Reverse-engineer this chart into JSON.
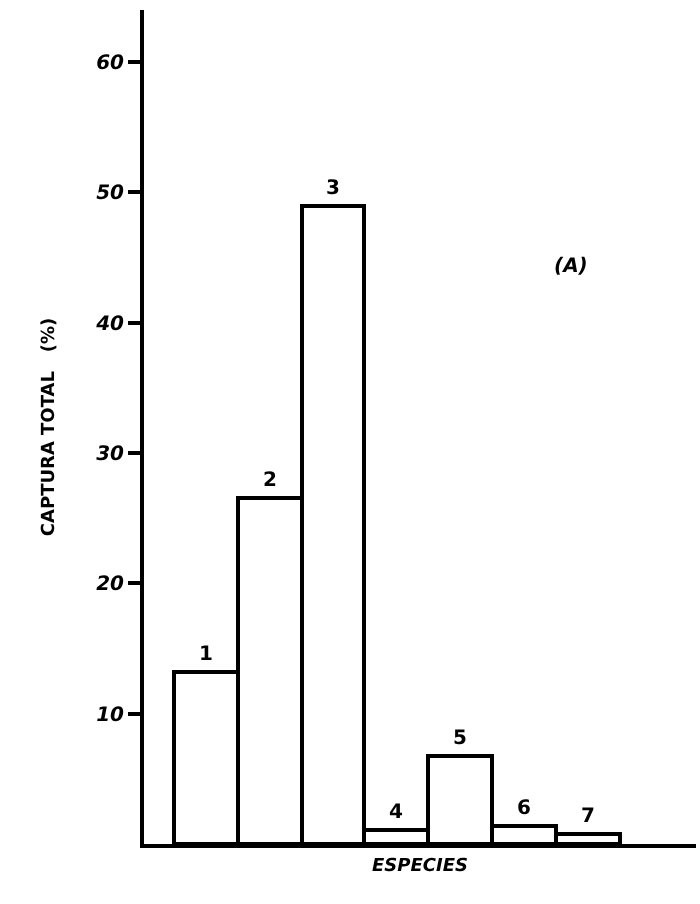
{
  "chart_data": {
    "type": "bar",
    "xlabel": "ESPECIES",
    "ylabel": "CAPTURA TOTAL   (%)",
    "categories": [
      "1",
      "2",
      "3",
      "4",
      "5",
      "6",
      "7"
    ],
    "values": [
      13.2,
      26.6,
      48.9,
      1.1,
      6.8,
      1.4,
      0.7
    ],
    "color": "#ffffff",
    "ylim": [
      0,
      64
    ],
    "yticks": [
      10,
      20,
      30,
      40,
      50,
      60
    ],
    "tick_labels": "y",
    "annotations": [
      "(A)"
    ]
  }
}
